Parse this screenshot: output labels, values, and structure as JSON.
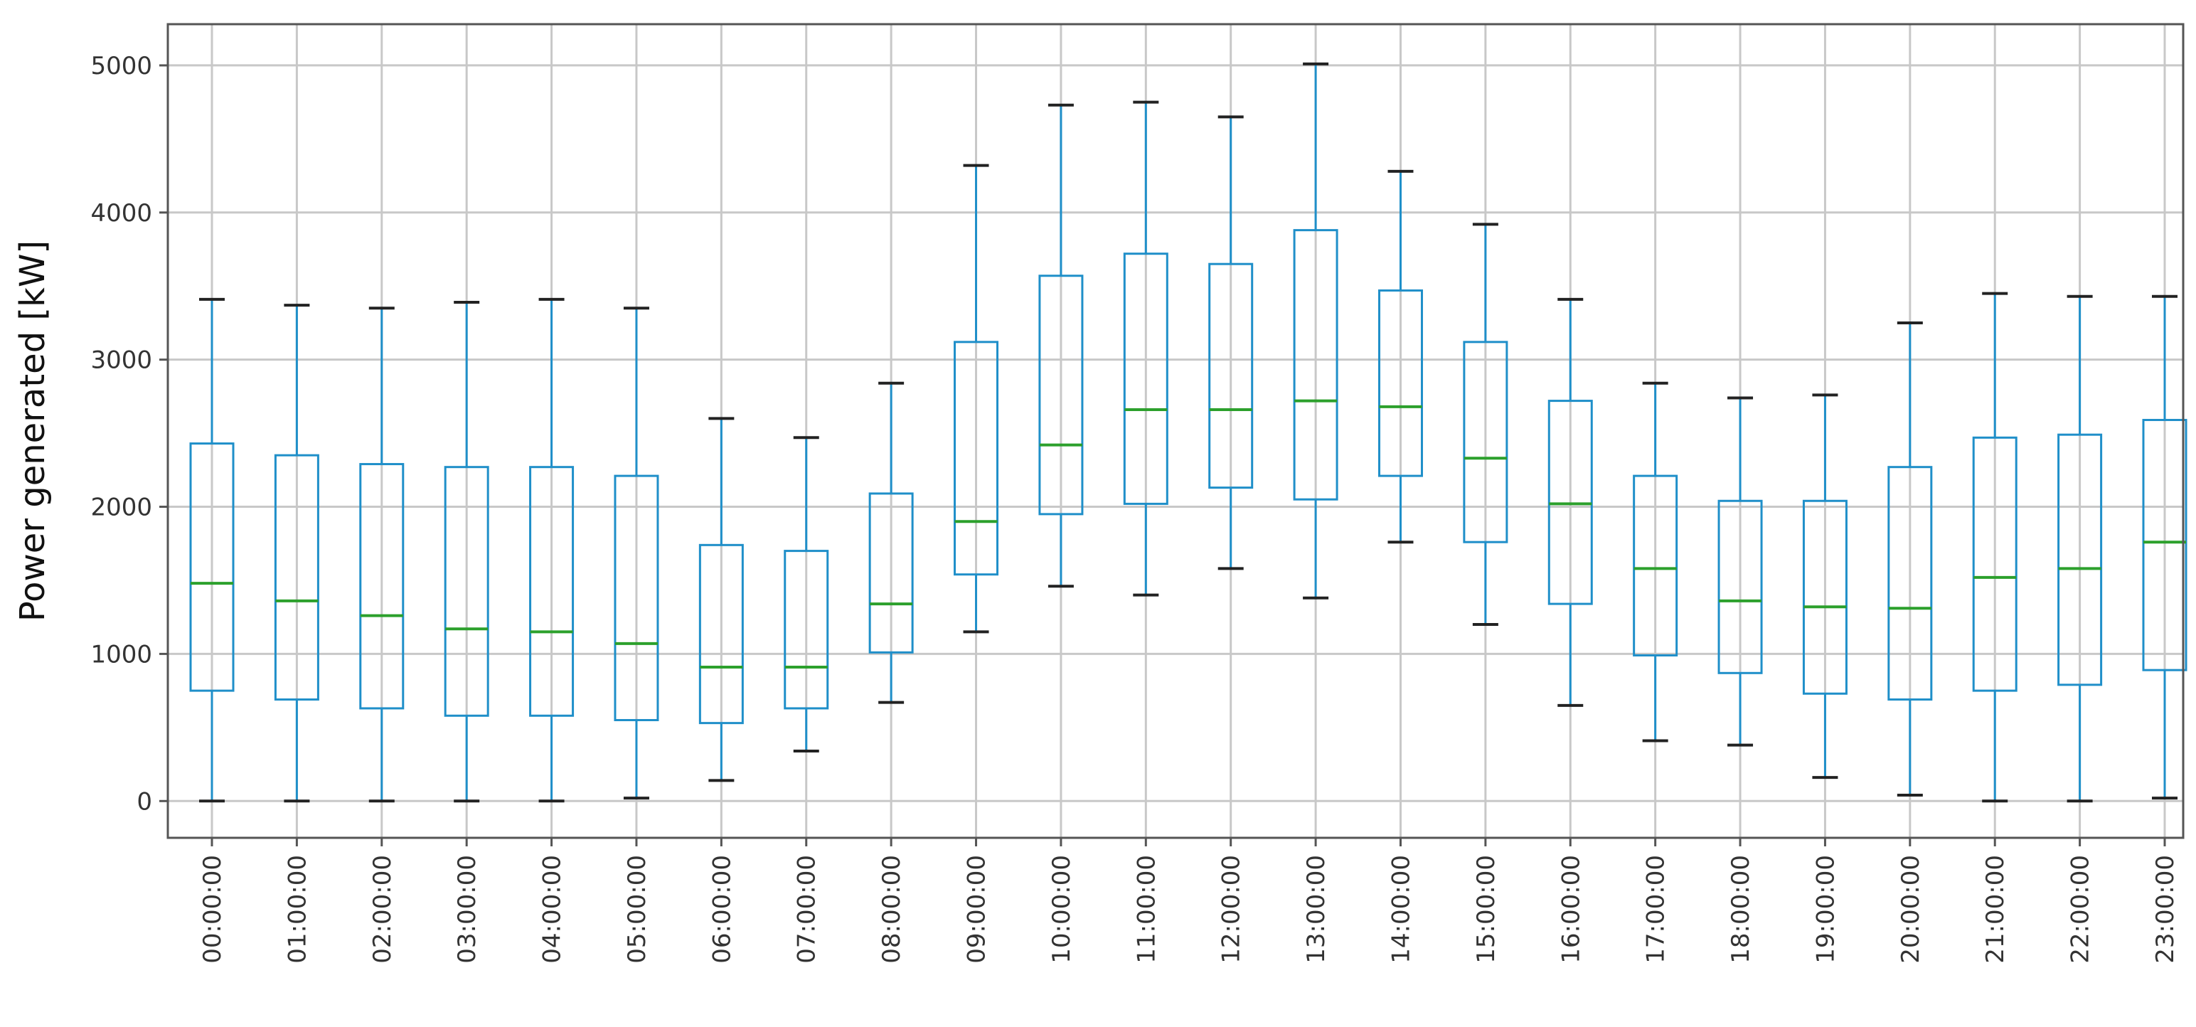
{
  "chart_data": {
    "type": "boxplot",
    "title": "",
    "xlabel": "",
    "ylabel": "Power generated [kW]",
    "ylim": [
      -250,
      5280
    ],
    "yticks": [
      0,
      1000,
      2000,
      3000,
      4000,
      5000
    ],
    "grid": true,
    "categories": [
      "00:00:00",
      "01:00:00",
      "02:00:00",
      "03:00:00",
      "04:00:00",
      "05:00:00",
      "06:00:00",
      "07:00:00",
      "08:00:00",
      "09:00:00",
      "10:00:00",
      "11:00:00",
      "12:00:00",
      "13:00:00",
      "14:00:00",
      "15:00:00",
      "16:00:00",
      "17:00:00",
      "18:00:00",
      "19:00:00",
      "20:00:00",
      "21:00:00",
      "22:00:00",
      "23:00:00"
    ],
    "boxes": [
      {
        "whislo": 0,
        "q1": 750,
        "med": 1480,
        "q3": 2430,
        "whishi": 3410
      },
      {
        "whislo": 0,
        "q1": 690,
        "med": 1360,
        "q3": 2350,
        "whishi": 3370
      },
      {
        "whislo": 0,
        "q1": 630,
        "med": 1260,
        "q3": 2290,
        "whishi": 3350
      },
      {
        "whislo": 0,
        "q1": 580,
        "med": 1170,
        "q3": 2270,
        "whishi": 3390
      },
      {
        "whislo": 0,
        "q1": 580,
        "med": 1150,
        "q3": 2270,
        "whishi": 3410
      },
      {
        "whislo": 20,
        "q1": 550,
        "med": 1070,
        "q3": 2210,
        "whishi": 3350
      },
      {
        "whislo": 140,
        "q1": 530,
        "med": 910,
        "q3": 1740,
        "whishi": 2600
      },
      {
        "whislo": 340,
        "q1": 630,
        "med": 910,
        "q3": 1700,
        "whishi": 2470
      },
      {
        "whislo": 670,
        "q1": 1010,
        "med": 1340,
        "q3": 2090,
        "whishi": 2840
      },
      {
        "whislo": 1150,
        "q1": 1540,
        "med": 1900,
        "q3": 3120,
        "whishi": 4320
      },
      {
        "whislo": 1460,
        "q1": 1950,
        "med": 2420,
        "q3": 3570,
        "whishi": 4730
      },
      {
        "whislo": 1400,
        "q1": 2020,
        "med": 2660,
        "q3": 3720,
        "whishi": 4750
      },
      {
        "whislo": 1580,
        "q1": 2130,
        "med": 2660,
        "q3": 3650,
        "whishi": 4650
      },
      {
        "whislo": 1380,
        "q1": 2050,
        "med": 2720,
        "q3": 3880,
        "whishi": 5010
      },
      {
        "whislo": 1760,
        "q1": 2210,
        "med": 2680,
        "q3": 3470,
        "whishi": 4280
      },
      {
        "whislo": 1200,
        "q1": 1760,
        "med": 2330,
        "q3": 3120,
        "whishi": 3920
      },
      {
        "whislo": 650,
        "q1": 1340,
        "med": 2020,
        "q3": 2720,
        "whishi": 3410
      },
      {
        "whislo": 410,
        "q1": 990,
        "med": 1580,
        "q3": 2210,
        "whishi": 2840
      },
      {
        "whislo": 380,
        "q1": 870,
        "med": 1360,
        "q3": 2040,
        "whishi": 2740
      },
      {
        "whislo": 160,
        "q1": 730,
        "med": 1320,
        "q3": 2040,
        "whishi": 2760
      },
      {
        "whislo": 40,
        "q1": 690,
        "med": 1310,
        "q3": 2270,
        "whishi": 3250
      },
      {
        "whislo": 0,
        "q1": 750,
        "med": 1520,
        "q3": 2470,
        "whishi": 3450
      },
      {
        "whislo": 0,
        "q1": 790,
        "med": 1580,
        "q3": 2490,
        "whishi": 3430
      },
      {
        "whislo": 20,
        "q1": 890,
        "med": 1760,
        "q3": 2590,
        "whishi": 3430
      }
    ],
    "colors": {
      "box": "#1f8fc9",
      "median": "#2ca02c",
      "cap": "#222222",
      "grid": "#c8c8c8",
      "frame": "#555555"
    }
  }
}
